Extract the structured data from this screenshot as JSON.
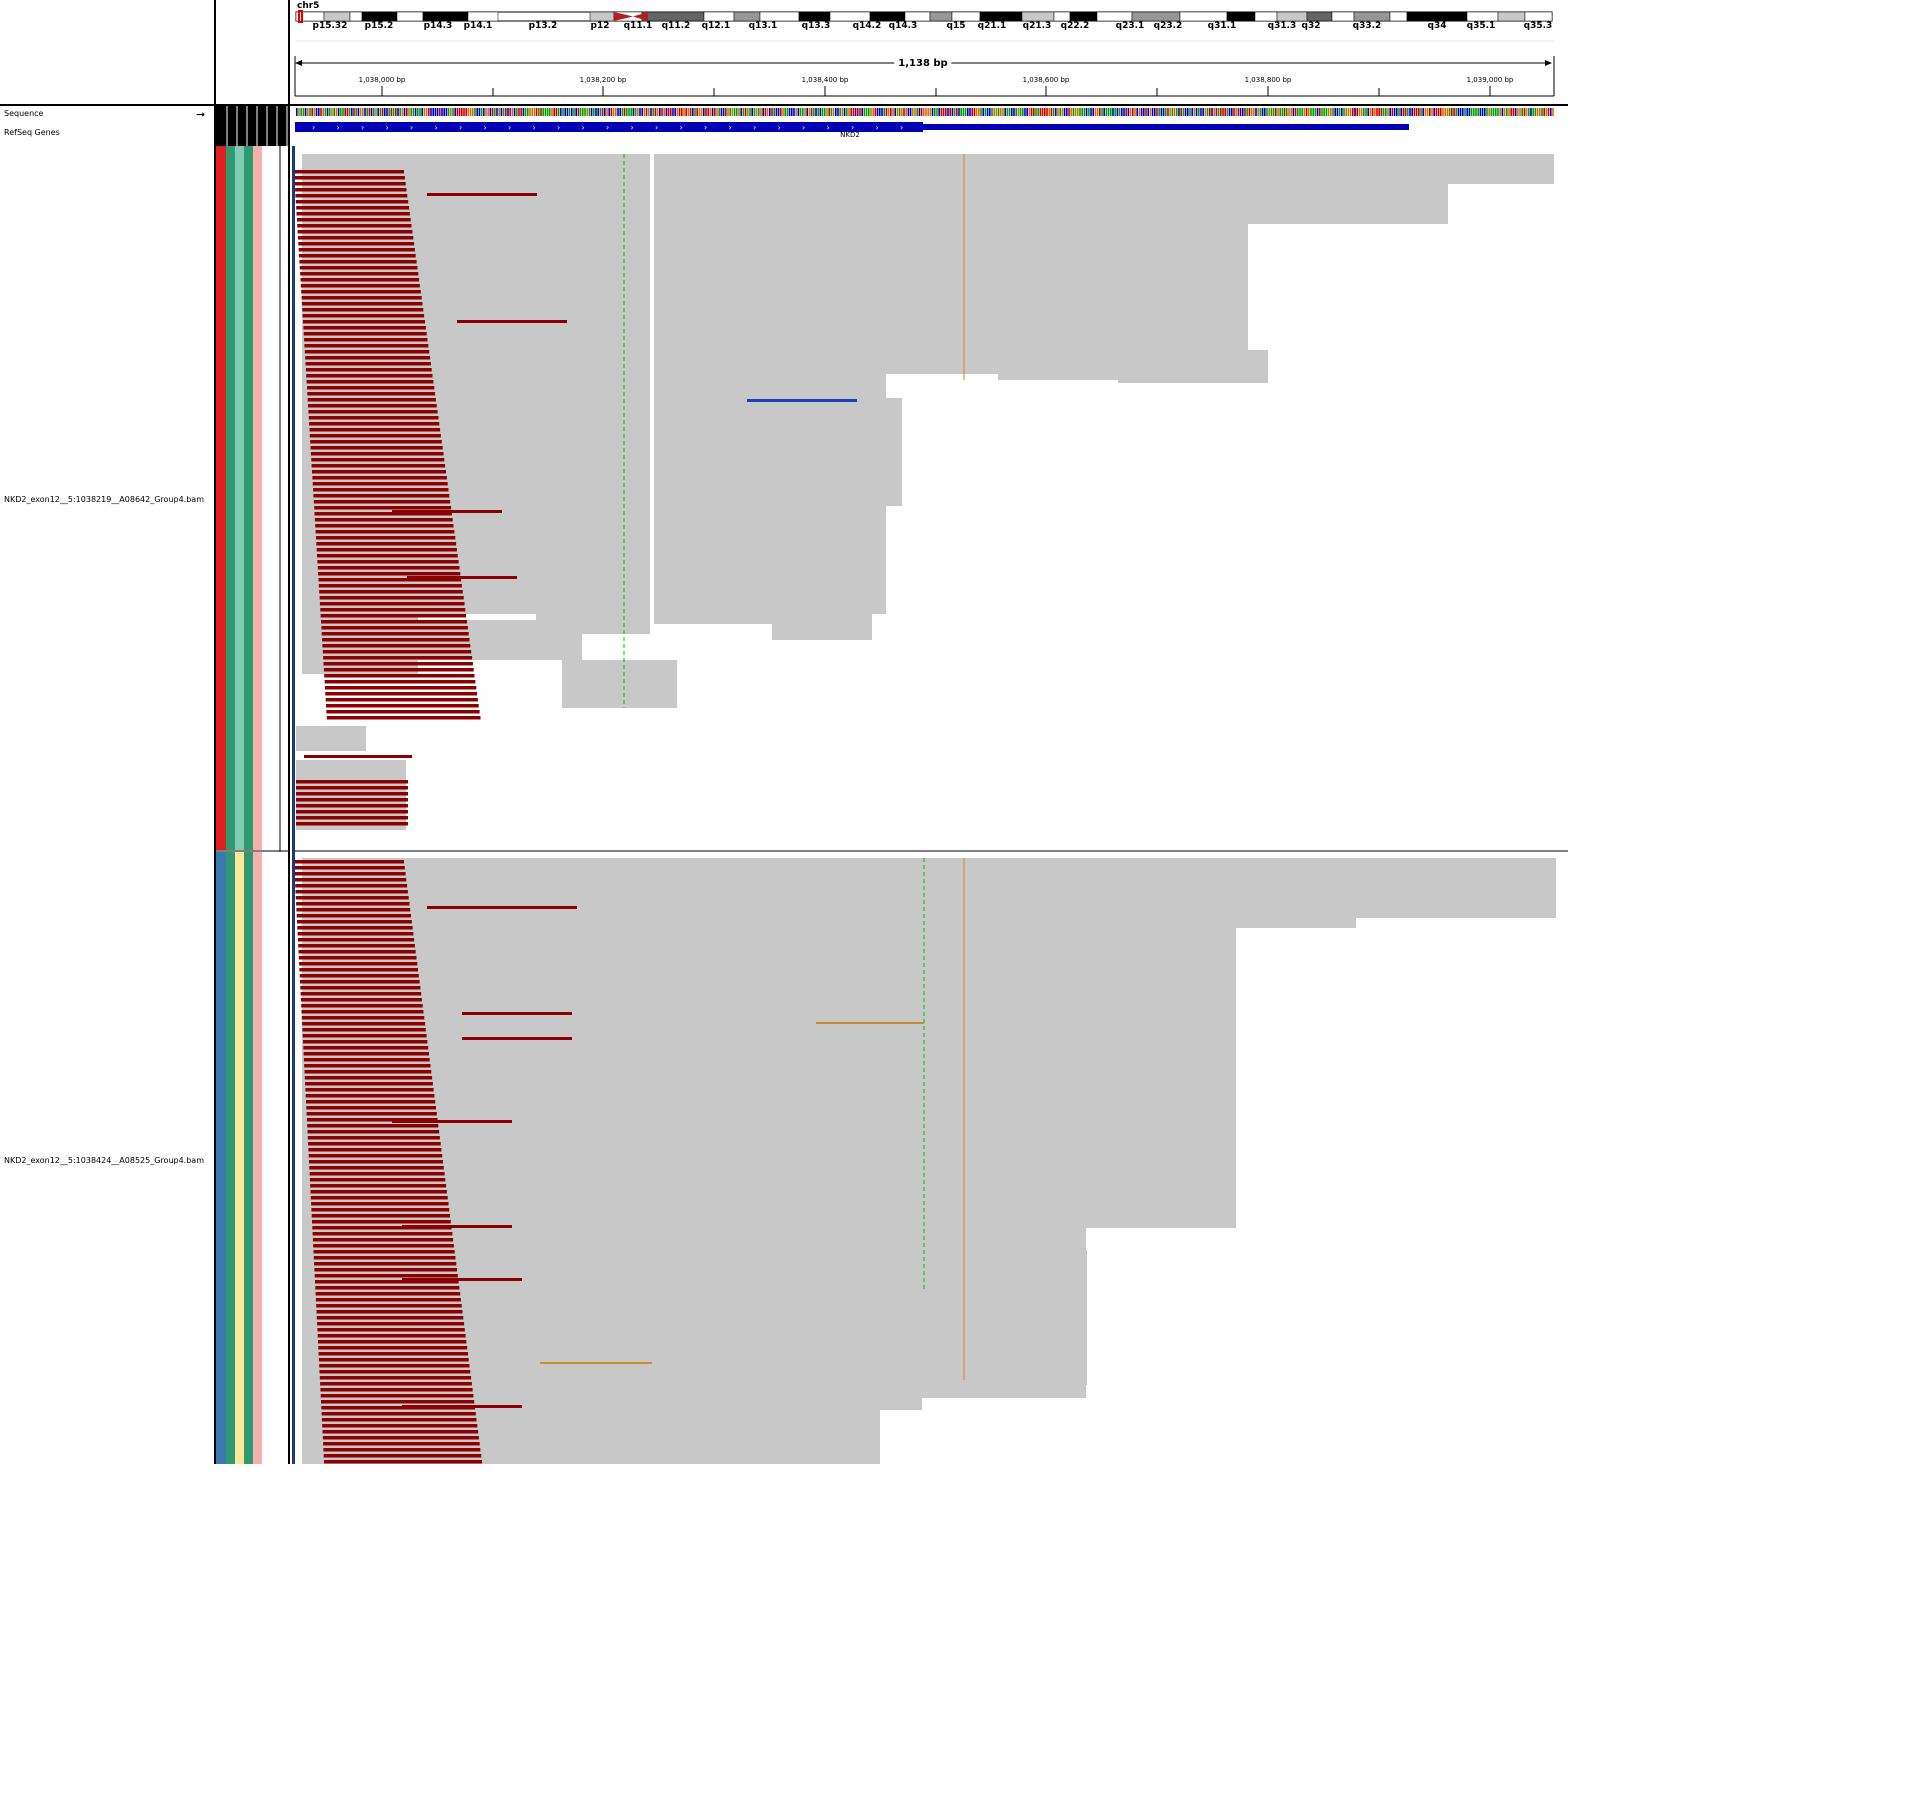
{
  "tracks": {
    "sequence": "Sequence",
    "refseq": "RefSeq Genes",
    "bam1": "NKD2_exon12__5:1038219__A08642_Group4.bam",
    "bam2": "NKD2_exon12__5:1038424__A08525_Group4.bam"
  },
  "ideogram": {
    "chromosome": "chr5",
    "bands": [
      "p15.32",
      "p15.2",
      "p14.3",
      "p14.1",
      "p13.2",
      "p12",
      "q11.1",
      "q11.2",
      "q12.1",
      "q13.1",
      "q13.3",
      "q14.2",
      "q14.3",
      "q15",
      "q21.1",
      "q21.3",
      "q22.2",
      "q23.1",
      "q23.2",
      "q31.1",
      "q31.3",
      "q32",
      "q33.2",
      "q34",
      "q35.1",
      "q35.3"
    ]
  },
  "ruler": {
    "total": "1,138 bp",
    "ticks": [
      "1,038,000 bp",
      "1,038,200 bp",
      "1,038,400 bp",
      "1,038,600 bp",
      "1,038,800 bp",
      "1,039,000 bp"
    ]
  },
  "gene": {
    "name": "NKD2"
  },
  "colors": {
    "read": "#c8c8c8",
    "clipped_read": "#8b0000",
    "gene": "#0000b4",
    "insert_blue": "#1f3fbf",
    "insert_orange": "#d08a2a",
    "attr1": "#e02020",
    "attr2": "#2f9a6f",
    "attr3": "#7fcbb3",
    "attr4": "#f7b1ac",
    "attr_blue": "#3a78b0",
    "attr_yellow": "#fde89a"
  }
}
